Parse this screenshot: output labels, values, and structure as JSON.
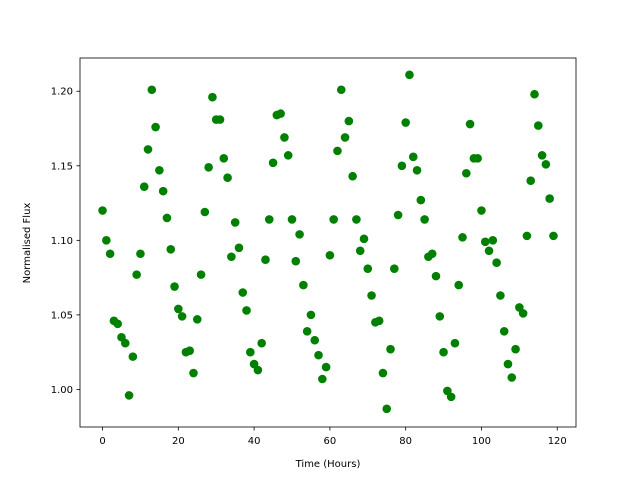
{
  "chart_data": {
    "type": "scatter",
    "xlabel": "Time (Hours)",
    "ylabel": "Normalised Flux",
    "color": "#008000",
    "xlim": [
      -5.95,
      124.95
    ],
    "ylim": [
      0.9748,
      1.2223
    ],
    "xticks": [
      0,
      20,
      40,
      60,
      80,
      100,
      120
    ],
    "yticks": [
      {
        "value": 1.0,
        "label": "1.00"
      },
      {
        "value": 1.05,
        "label": "1.05"
      },
      {
        "value": 1.1,
        "label": "1.10"
      },
      {
        "value": 1.15,
        "label": "1.15"
      },
      {
        "value": 1.2,
        "label": "1.20"
      }
    ],
    "grid": false,
    "x": [
      0,
      1,
      2,
      3,
      4,
      5,
      6,
      7,
      8,
      9,
      10,
      11,
      12,
      13,
      14,
      15,
      16,
      17,
      18,
      19,
      20,
      21,
      22,
      23,
      24,
      25,
      26,
      27,
      28,
      29,
      30,
      31,
      32,
      33,
      34,
      35,
      36,
      37,
      38,
      39,
      40,
      41,
      42,
      43,
      44,
      45,
      46,
      47,
      48,
      49,
      50,
      51,
      52,
      53,
      54,
      55,
      56,
      57,
      58,
      59,
      60,
      61,
      62,
      63,
      64,
      65,
      66,
      67,
      68,
      69,
      70,
      71,
      72,
      73,
      74,
      75,
      76,
      77,
      78,
      79,
      80,
      81,
      82,
      83,
      84,
      85,
      86,
      87,
      88,
      89,
      90,
      91,
      92,
      93,
      94,
      95,
      96,
      97,
      98,
      99,
      100,
      101,
      102,
      103,
      104,
      105,
      106,
      107,
      108,
      109,
      110,
      111,
      112,
      113,
      114,
      115,
      116,
      117,
      118,
      119
    ],
    "values": [
      1.12,
      1.1,
      1.091,
      1.046,
      1.044,
      1.035,
      1.031,
      0.996,
      1.022,
      1.077,
      1.091,
      1.136,
      1.161,
      1.201,
      1.176,
      1.147,
      1.133,
      1.115,
      1.094,
      1.069,
      1.054,
      1.049,
      1.025,
      1.026,
      1.011,
      1.047,
      1.077,
      1.119,
      1.149,
      1.196,
      1.181,
      1.181,
      1.155,
      1.142,
      1.089,
      1.112,
      1.095,
      1.065,
      1.053,
      1.025,
      1.017,
      1.013,
      1.031,
      1.087,
      1.114,
      1.152,
      1.184,
      1.185,
      1.169,
      1.157,
      1.114,
      1.086,
      1.104,
      1.07,
      1.039,
      1.05,
      1.033,
      1.023,
      1.007,
      1.015,
      1.09,
      1.114,
      1.16,
      1.201,
      1.169,
      1.18,
      1.143,
      1.114,
      1.093,
      1.101,
      1.081,
      1.063,
      1.045,
      1.046,
      1.011,
      0.987,
      1.027,
      1.081,
      1.117,
      1.15,
      1.179,
      1.211,
      1.156,
      1.147,
      1.127,
      1.114,
      1.089,
      1.091,
      1.076,
      1.049,
      1.025,
      0.999,
      0.995,
      1.031,
      1.07,
      1.102,
      1.145,
      1.178,
      1.155,
      1.155,
      1.12,
      1.099,
      1.093,
      1.1,
      1.085,
      1.063,
      1.039,
      1.017,
      1.008,
      1.027,
      1.055,
      1.051,
      1.103,
      1.14,
      1.198,
      1.177,
      1.157,
      1.151,
      1.128,
      1.103
    ]
  }
}
